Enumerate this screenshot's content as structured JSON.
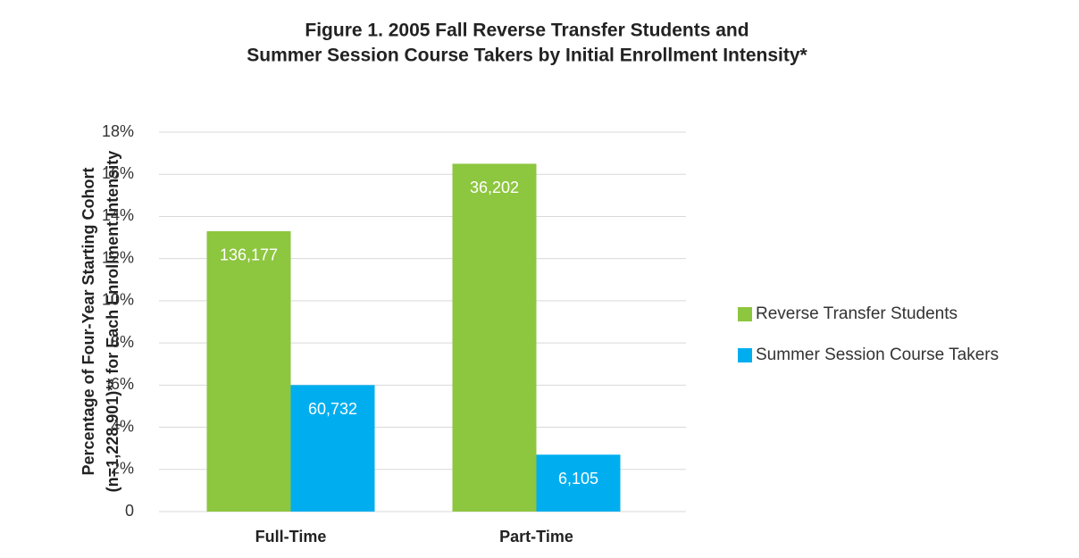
{
  "chart_data": {
    "type": "bar",
    "title": [
      "Figure 1. 2005 Fall Reverse Transfer Students and",
      "Summer Session Course Takers by Initial Enrollment Intensity*"
    ],
    "y_label": [
      "Percentage of Four-Year Starting Cohort",
      "(n=1,228,901)** for Each Enrollment Intensity"
    ],
    "categories": [
      "Full-Time",
      "Part-Time"
    ],
    "series": [
      {
        "name": "Reverse Transfer Students",
        "color": "#8dc63f",
        "values": [
          13.3,
          16.5
        ],
        "data_labels": [
          "136,177",
          "36,202"
        ]
      },
      {
        "name": "Summer Session Course Takers",
        "color": "#00aeef",
        "values": [
          6.0,
          2.7
        ],
        "data_labels": [
          "60,732",
          "6,105"
        ]
      }
    ],
    "ylim": [
      0,
      18
    ],
    "yticks": [
      0,
      {
        "value": 2,
        "label": "2%"
      },
      {
        "value": 4,
        "label": "4%"
      },
      {
        "value": 6,
        "label": "6%"
      },
      {
        "value": 8,
        "label": "8%"
      },
      {
        "value": 10,
        "label": "10%"
      },
      {
        "value": 12,
        "label": "12%"
      },
      {
        "value": 14,
        "label": "14%"
      },
      {
        "value": 16,
        "label": "16%"
      },
      {
        "value": 18,
        "label": "18%"
      }
    ],
    "grid": true,
    "legend": "right"
  }
}
